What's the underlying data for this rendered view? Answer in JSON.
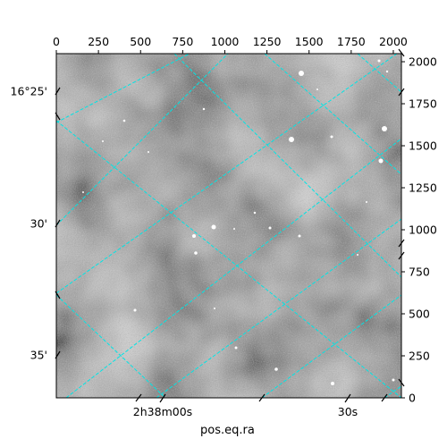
{
  "chart_data": {
    "type": "image",
    "plot": "astronomical image with equatorial coordinate grid overlay",
    "colormap": "grayscale",
    "grid": true,
    "grid_color": "#00e5e5",
    "grid_style": "dashed",
    "xlabel": "pos.eq.ra",
    "pixel_axes": {
      "x": {
        "range": [
          0,
          2048
        ],
        "ticks": [
          0,
          250,
          500,
          750,
          1000,
          1250,
          1500,
          1750,
          2000
        ],
        "position": "top"
      },
      "y": {
        "range": [
          0,
          2048
        ],
        "ticks": [
          0,
          250,
          500,
          750,
          1000,
          1250,
          1500,
          1750,
          2000
        ],
        "position": "right"
      }
    },
    "world_axes": {
      "ra": {
        "tick_labels": [
          "2h38m00s",
          "30s"
        ]
      },
      "dec": {
        "tick_labels": [
          "16°25'",
          "30'",
          "35'"
        ]
      }
    }
  }
}
